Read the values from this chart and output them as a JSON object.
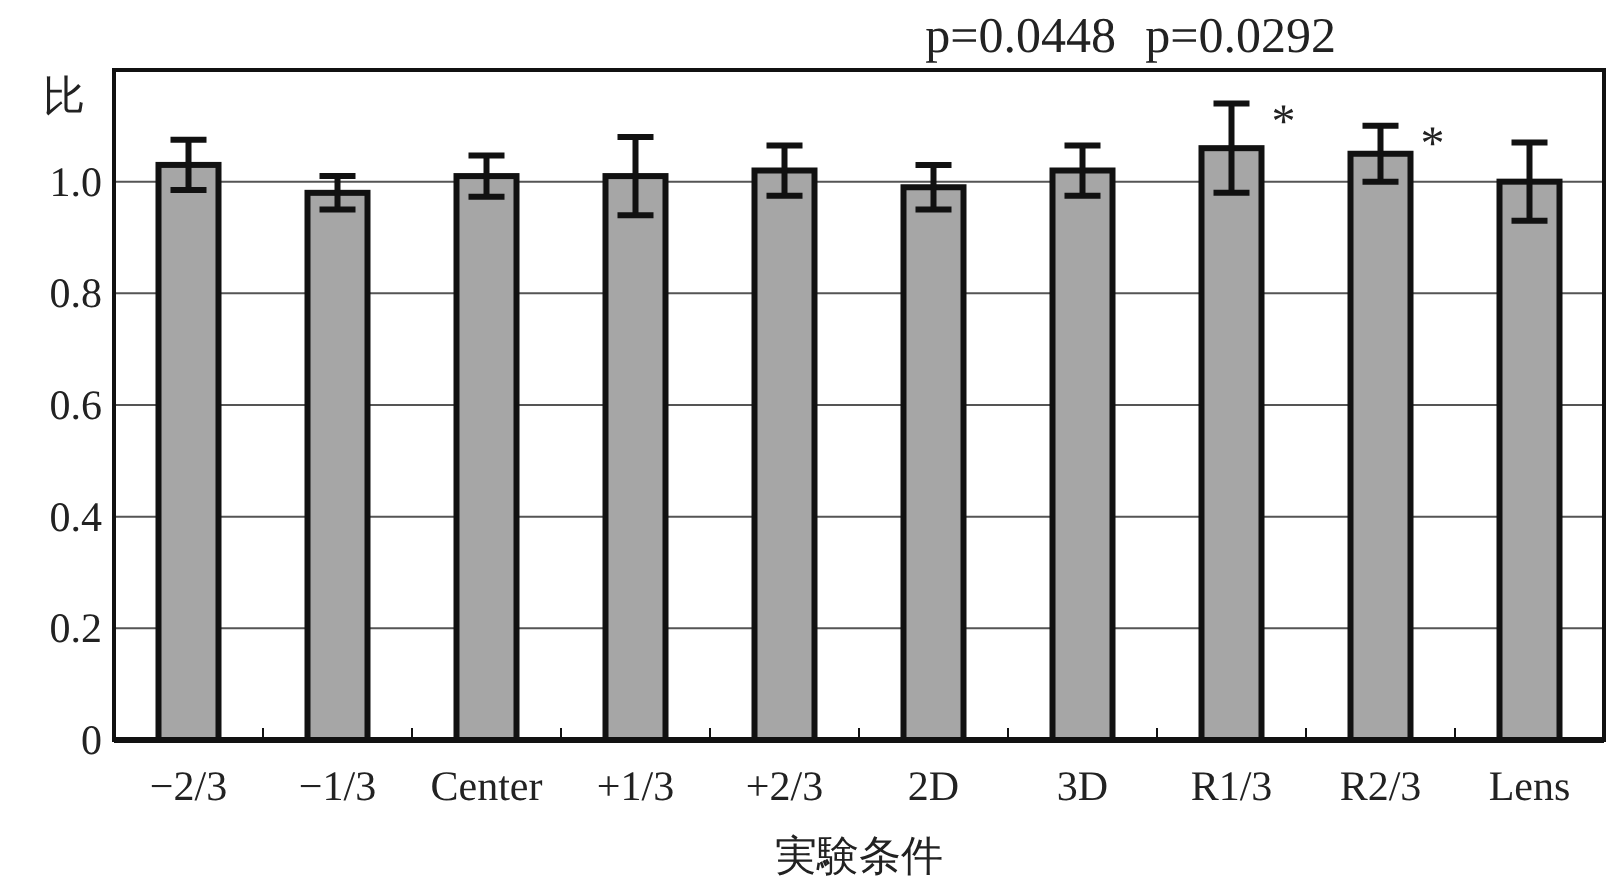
{
  "chart_data": {
    "type": "bar",
    "ylabel": "比",
    "xlabel": "実験条件",
    "categories": [
      "−2/3",
      "−1/3",
      "Center",
      "+1/3",
      "+2/3",
      "2D",
      "3D",
      "R1/3",
      "R2/3",
      "Lens"
    ],
    "values": [
      1.03,
      0.98,
      1.01,
      1.01,
      1.02,
      0.99,
      1.02,
      1.06,
      1.05,
      1.0
    ],
    "errors": [
      0.045,
      0.03,
      0.037,
      0.07,
      0.045,
      0.04,
      0.045,
      0.08,
      0.05,
      0.07
    ],
    "color": "#a6a6a6",
    "ylim": [
      0,
      1.2
    ],
    "yticks": [
      0,
      0.2,
      0.4,
      0.6,
      0.8,
      {
        "value": 1,
        "label": "1.0"
      }
    ],
    "grid": "y",
    "annotations": [
      "p=0.0448",
      "p=0.0292",
      {
        "text": "*",
        "x": "R1/3",
        "y": 1.13
      },
      {
        "text": "*",
        "x": "R2/3",
        "y": 1.09
      }
    ]
  }
}
